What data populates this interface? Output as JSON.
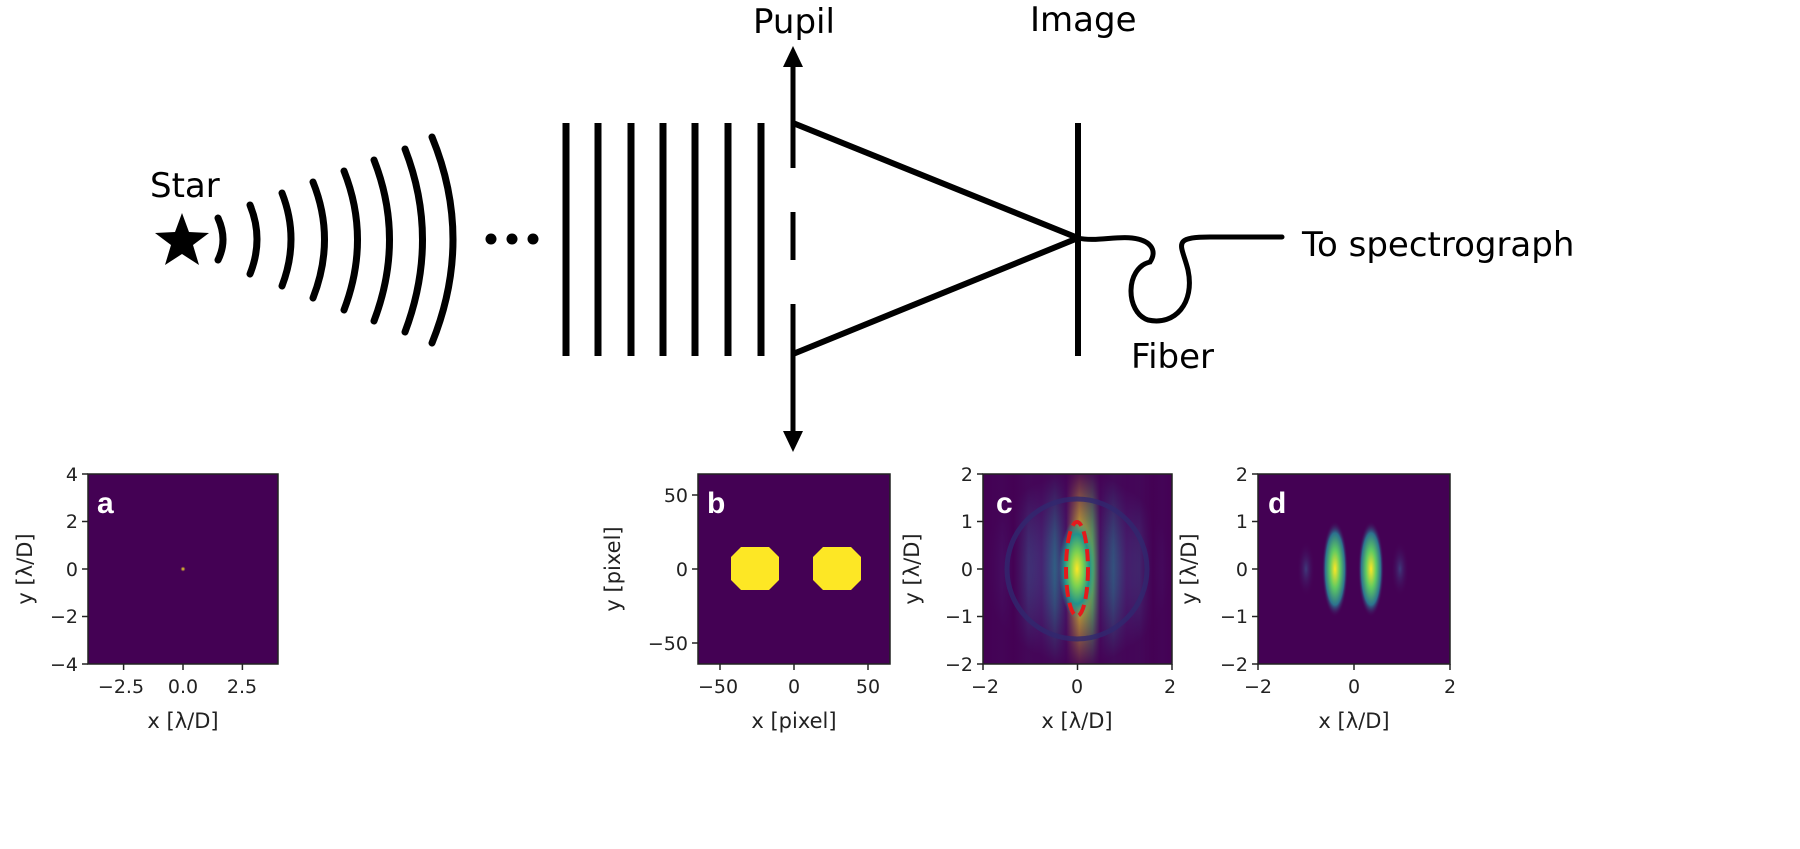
{
  "labels": {
    "star": "Star",
    "pupil": "Pupil",
    "image": "Image",
    "fiber": "Fiber",
    "to_spectrograph": "To spectrograph"
  },
  "icons": [
    "star-icon",
    "ellipsis-icon",
    "double-arrow-icon"
  ],
  "colors": {
    "viridis_dark": "#440154",
    "viridis_yellow": "#fde725",
    "ellipse_red": "#e41a1c"
  },
  "panels": [
    {
      "letter": "a",
      "xticks": [
        "−2.5",
        "0.0",
        "2.5"
      ],
      "yticks": [
        "4",
        "2",
        "0",
        "−2",
        "−4"
      ],
      "xlabel": "x [λ/D]",
      "ylabel": "y [λ/D]"
    },
    {
      "letter": "b",
      "xticks": [
        "−50",
        "0",
        "50"
      ],
      "yticks": [
        "50",
        "0",
        "−50"
      ],
      "xlabel": "x [pixel]",
      "ylabel": "y [pixel]"
    },
    {
      "letter": "c",
      "xticks": [
        "−2",
        "0",
        "2"
      ],
      "yticks": [
        "2",
        "1",
        "0",
        "−1",
        "−2"
      ],
      "xlabel": "x [λ/D]",
      "ylabel": "y [λ/D]"
    },
    {
      "letter": "d",
      "xticks": [
        "−2",
        "0",
        "2"
      ],
      "yticks": [
        "2",
        "1",
        "0",
        "−1",
        "−2"
      ],
      "xlabel": "x [λ/D]",
      "ylabel": "y [λ/D]"
    }
  ]
}
